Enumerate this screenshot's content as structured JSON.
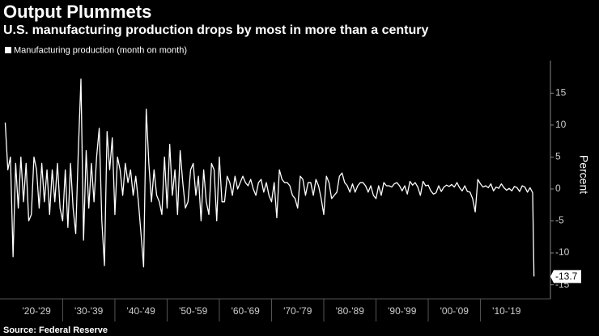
{
  "chart_data": {
    "type": "line",
    "title": "Output Plummets",
    "subtitle": "U.S. manufacturing production drops by most in more than a century",
    "y_label": "Percent",
    "source": "Source: Federal Reserve",
    "xlim": [
      1918,
      2023.4
    ],
    "ylim": [
      -17.2,
      20.1
    ],
    "yticks": [
      -15,
      -10,
      -5,
      0,
      5,
      10,
      15
    ],
    "decades": [
      {
        "label": "'20-'29",
        "start": 1920,
        "end": 1930
      },
      {
        "label": "'30-'39",
        "start": 1930,
        "end": 1940
      },
      {
        "label": "'40-'49",
        "start": 1940,
        "end": 1950
      },
      {
        "label": "'50-'59",
        "start": 1950,
        "end": 1960
      },
      {
        "label": "'60-'69",
        "start": 1960,
        "end": 1970
      },
      {
        "label": "'70-'79",
        "start": 1970,
        "end": 1980
      },
      {
        "label": "'80-'89",
        "start": 1980,
        "end": 1990
      },
      {
        "label": "'90-'99",
        "start": 1990,
        "end": 2000
      },
      {
        "label": "'00-'09",
        "start": 2000,
        "end": 2010
      },
      {
        "label": "'10-'19",
        "start": 2010,
        "end": 2020
      }
    ],
    "x": [
      1919,
      1919.5,
      1920,
      1920.5,
      1921,
      1921.5,
      1922,
      1922.5,
      1923,
      1923.5,
      1924,
      1924.5,
      1925,
      1925.5,
      1926,
      1926.5,
      1927,
      1927.5,
      1928,
      1928.5,
      1929,
      1929.5,
      1930,
      1930.5,
      1931,
      1931.5,
      1932,
      1932.5,
      1933,
      1933.5,
      1934,
      1934.5,
      1935,
      1935.5,
      1936,
      1936.5,
      1937,
      1937.5,
      1938,
      1938.5,
      1939,
      1939.5,
      1940,
      1940.5,
      1941,
      1941.5,
      1942,
      1942.5,
      1943,
      1943.5,
      1944,
      1944.5,
      1945,
      1945.5,
      1946,
      1946.5,
      1947,
      1947.5,
      1948,
      1948.5,
      1949,
      1949.5,
      1950,
      1950.5,
      1951,
      1951.5,
      1952,
      1952.5,
      1953,
      1953.5,
      1954,
      1954.5,
      1955,
      1955.5,
      1956,
      1956.5,
      1957,
      1957.5,
      1958,
      1958.5,
      1959,
      1959.5,
      1960,
      1960.5,
      1961,
      1961.5,
      1962,
      1962.5,
      1963,
      1963.5,
      1964,
      1964.5,
      1965,
      1965.5,
      1966,
      1966.5,
      1967,
      1967.5,
      1968,
      1968.5,
      1969,
      1969.5,
      1970,
      1970.5,
      1971,
      1971.5,
      1972,
      1972.5,
      1973,
      1973.5,
      1974,
      1974.5,
      1975,
      1975.5,
      1976,
      1976.5,
      1977,
      1977.5,
      1978,
      1978.5,
      1979,
      1979.5,
      1980,
      1980.5,
      1981,
      1981.5,
      1982,
      1982.5,
      1983,
      1983.5,
      1984,
      1984.5,
      1985,
      1985.5,
      1986,
      1986.5,
      1987,
      1987.5,
      1988,
      1988.5,
      1989,
      1989.5,
      1990,
      1990.5,
      1991,
      1991.5,
      1992,
      1992.5,
      1993,
      1993.5,
      1994,
      1994.5,
      1995,
      1995.5,
      1996,
      1996.5,
      1997,
      1997.5,
      1998,
      1998.5,
      1999,
      1999.5,
      2000,
      2000.5,
      2001,
      2001.5,
      2002,
      2002.5,
      2003,
      2003.5,
      2004,
      2004.5,
      2005,
      2005.5,
      2006,
      2006.5,
      2007,
      2007.5,
      2008,
      2008.5,
      2009,
      2009.5,
      2010,
      2010.5,
      2011,
      2011.5,
      2012,
      2012.5,
      2013,
      2013.5,
      2014,
      2014.5,
      2015,
      2015.5,
      2016,
      2016.5,
      2017,
      2017.5,
      2018,
      2018.5,
      2019,
      2019.5,
      2020,
      2020.25
    ],
    "series": [
      {
        "name": "Manufacturing production (month on month)",
        "color": "#ffffff",
        "values": [
          10.4,
          3,
          5,
          -10.6,
          4,
          -3,
          5,
          -2,
          4,
          -5,
          -4,
          5,
          3,
          -3,
          4,
          -2,
          3,
          -4,
          3,
          -2,
          4,
          -3,
          -5,
          3,
          -6,
          4,
          -3,
          -7,
          6,
          17.2,
          -8,
          6,
          -3,
          4,
          -2,
          5,
          9.5,
          -5,
          -12,
          9,
          3,
          8,
          -4,
          5,
          3,
          -1,
          4,
          1,
          3,
          -1,
          2,
          -2,
          -7,
          -12.2,
          12.5,
          4,
          -2,
          3,
          -1,
          -2,
          -4,
          5,
          -3,
          7,
          -1,
          3,
          -4,
          6,
          1,
          -3,
          -2,
          3,
          4,
          -1,
          2,
          -5,
          3,
          -2,
          -4,
          4,
          3,
          -5,
          5,
          -2,
          -2,
          2,
          1,
          -1,
          2,
          0,
          1,
          2,
          1,
          0.5,
          1.5,
          0,
          -1,
          1,
          1.5,
          -0.5,
          1,
          -1,
          -2,
          1,
          -4.5,
          3,
          1.5,
          1,
          1,
          0.5,
          -1,
          -1.5,
          -3,
          2,
          1.5,
          -1,
          1,
          1,
          -1,
          1.5,
          0.5,
          -1.5,
          -4,
          2,
          1,
          -1.5,
          -1,
          -0.5,
          2,
          2.5,
          1,
          0.5,
          -0.5,
          0.8,
          -0.5,
          0.5,
          1,
          1,
          0.5,
          -0.5,
          0.5,
          -1,
          -1.5,
          0.5,
          -1,
          1,
          0.5,
          0.5,
          0.3,
          0.8,
          1,
          0.5,
          -0.3,
          0.5,
          -0.8,
          1.2,
          0.6,
          1,
          0.3,
          -1,
          1.2,
          0.5,
          0.6,
          -0.3,
          -0.8,
          -0.6,
          0.5,
          -0.4,
          0.3,
          0.6,
          0.4,
          0.7,
          0.3,
          1,
          0.2,
          -0.3,
          0.5,
          -0.4,
          -0.5,
          -1.5,
          -3.6,
          1.5,
          0.8,
          0.3,
          0.5,
          0.2,
          0.8,
          -0.3,
          0.3,
          0.1,
          0.8,
          0.2,
          -0.2,
          0.1,
          -0.3,
          0.4,
          0.2,
          -0.4,
          0.5,
          0.3,
          -0.5,
          0.2,
          -0.6,
          -13.7
        ],
        "value_labels": {
          "203": "-13.7"
        }
      }
    ]
  }
}
